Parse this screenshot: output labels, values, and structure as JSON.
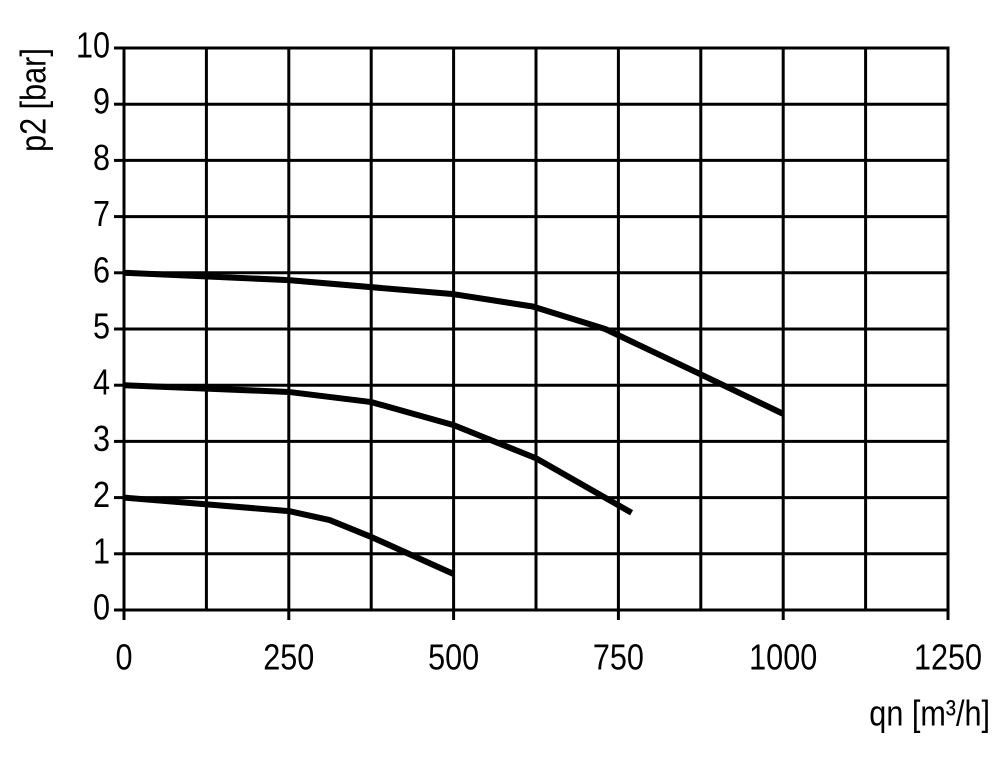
{
  "chart_data": {
    "type": "line",
    "x_label": "qn [m³/h]",
    "y_label": "p2 [bar]",
    "xlim": [
      0,
      1250
    ],
    "ylim": [
      0,
      10
    ],
    "xticks": [
      0,
      250,
      500,
      750,
      1000,
      1250
    ],
    "yticks": [
      0,
      1,
      2,
      3,
      4,
      5,
      6,
      7,
      8,
      9,
      10
    ],
    "xgrid": [
      0,
      125,
      250,
      375,
      500,
      625,
      750,
      875,
      1000,
      1125,
      1250
    ],
    "grid": true,
    "series": [
      {
        "color": "#000000",
        "x": [
          0,
          250,
          500,
          620,
          730,
          870,
          1000
        ],
        "values": [
          6,
          5.87,
          5.62,
          5.4,
          5.0,
          4.22,
          3.49
        ]
      },
      {
        "color": "#000000",
        "x": [
          0,
          250,
          375,
          500,
          625,
          770
        ],
        "values": [
          4,
          3.88,
          3.7,
          3.29,
          2.7,
          1.73
        ]
      },
      {
        "color": "#000000",
        "x": [
          0,
          250,
          312,
          375,
          500
        ],
        "values": [
          2,
          1.76,
          1.6,
          1.3,
          0.64
        ]
      }
    ]
  }
}
